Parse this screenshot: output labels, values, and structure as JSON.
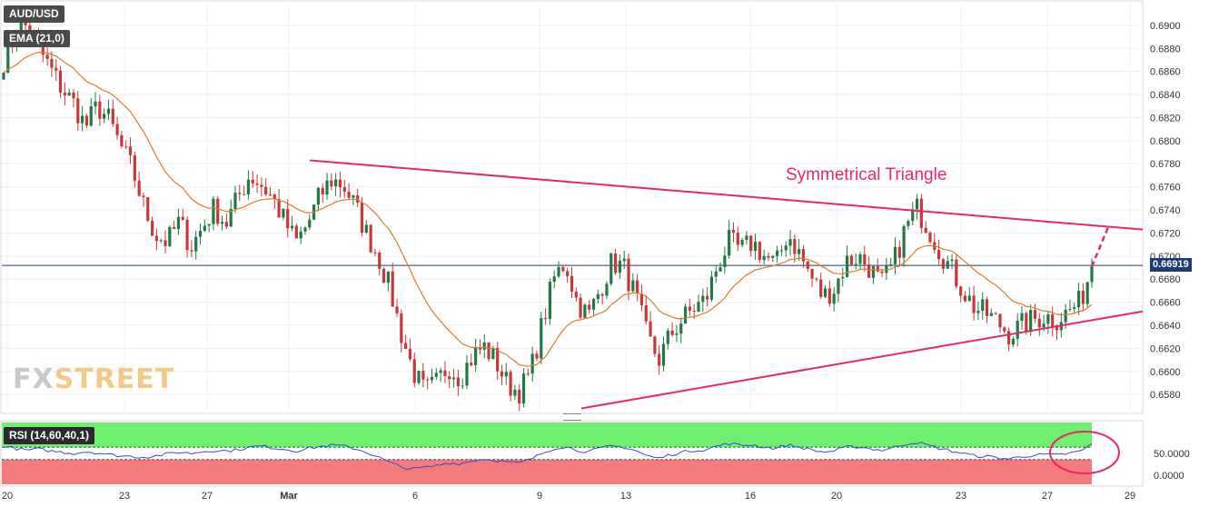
{
  "symbol": "AUD/USD",
  "indicator_label": "EMA (21,0)",
  "rsi_label": "RSI (14,60,40,1)",
  "last_price": "0.66919",
  "annotation": "Symmetrical Triangle",
  "watermark": {
    "prefix": "FX",
    "suffix": "STREET"
  },
  "colors": {
    "candle_up": "#1f7a45",
    "candle_down": "#c8373a",
    "ema": "#e07b2a",
    "trendline": "#e6276b",
    "rsi_line": "#2f4fd0",
    "rsi_upper_zone": "#6ef06e",
    "rsi_lower_zone": "#f37b7b",
    "price_line": "#1f3b73"
  },
  "chart_data": {
    "type": "candlestick",
    "x_tick_labels": [
      "20",
      "23",
      "27",
      "Mar",
      "6",
      "9",
      "13",
      "16",
      "20",
      "23",
      "27",
      "29"
    ],
    "y_tick_labels": [
      "0.6900",
      "0.6880",
      "0.6860",
      "0.6840",
      "0.6820",
      "0.6800",
      "0.6780",
      "0.6760",
      "0.6740",
      "0.6720",
      "0.6700",
      "0.6680",
      "0.6660",
      "0.6640",
      "0.6620",
      "0.6600",
      "0.6580"
    ],
    "ylim": [
      0.6566,
      0.6918
    ],
    "close_path": [
      0.687,
      0.6895,
      0.69,
      0.688,
      0.6862,
      0.6845,
      0.6832,
      0.6812,
      0.683,
      0.6818,
      0.6795,
      0.6775,
      0.6742,
      0.6718,
      0.6712,
      0.673,
      0.6708,
      0.6725,
      0.6742,
      0.6728,
      0.675,
      0.677,
      0.6762,
      0.675,
      0.673,
      0.6712,
      0.6728,
      0.6752,
      0.6766,
      0.6762,
      0.6744,
      0.672,
      0.67,
      0.6672,
      0.6632,
      0.66,
      0.6582,
      0.659,
      0.6605,
      0.6595,
      0.6612,
      0.6622,
      0.661,
      0.659,
      0.6582,
      0.6598,
      0.664,
      0.668,
      0.6695,
      0.666,
      0.6648,
      0.6672,
      0.6695,
      0.669,
      0.6665,
      0.663,
      0.661,
      0.6632,
      0.6645,
      0.6655,
      0.6662,
      0.6692,
      0.6712,
      0.6705,
      0.6712,
      0.67,
      0.6692,
      0.672,
      0.6702,
      0.6682,
      0.6665,
      0.6672,
      0.6695,
      0.67,
      0.669,
      0.6675,
      0.6692,
      0.6722,
      0.6742,
      0.6725,
      0.6705,
      0.6688,
      0.667,
      0.6655,
      0.665,
      0.6642,
      0.6632,
      0.664,
      0.6645,
      0.6648,
      0.6645,
      0.6652,
      0.666,
      0.6691
    ],
    "ema_period": 21,
    "triangle": {
      "upper_line": {
        "start": [
          "Mar 1",
          0.6783
        ],
        "end": [
          "Mar 29",
          0.6723
        ]
      },
      "lower_line": {
        "start": [
          "Mar 10",
          0.6568
        ],
        "end": [
          "Mar 29",
          0.6652
        ]
      },
      "projection_end": [
        "Mar 28",
        0.6725
      ]
    },
    "rsi": {
      "levels": [
        60,
        40
      ],
      "y_tick_labels": [
        "50.0000",
        "0.0000"
      ],
      "ylim": [
        0,
        100
      ],
      "values": [
        62,
        58,
        55,
        57,
        54,
        52,
        50,
        53,
        51,
        48,
        46,
        45,
        44,
        46,
        49,
        52,
        50,
        53,
        55,
        54,
        56,
        60,
        62,
        59,
        57,
        54,
        58,
        61,
        63,
        62,
        58,
        52,
        44,
        35,
        28,
        25,
        27,
        30,
        35,
        33,
        38,
        41,
        39,
        36,
        34,
        40,
        50,
        58,
        61,
        55,
        53,
        58,
        62,
        60,
        55,
        46,
        42,
        48,
        52,
        55,
        56,
        62,
        66,
        63,
        64,
        60,
        58,
        64,
        60,
        56,
        52,
        54,
        60,
        61,
        58,
        55,
        59,
        65,
        68,
        63,
        58,
        54,
        50,
        46,
        45,
        43,
        41,
        45,
        47,
        48,
        47,
        50,
        53,
        65
      ]
    }
  }
}
